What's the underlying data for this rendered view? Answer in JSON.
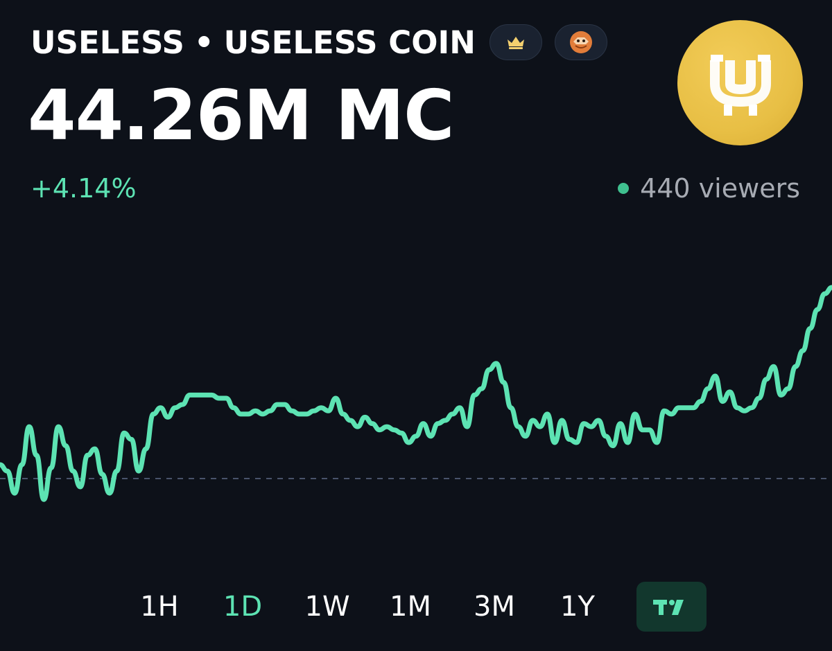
{
  "header": {
    "ticker": "USELESS",
    "separator": "•",
    "name": "USELESS COIN",
    "badges": [
      {
        "icon": "crown-icon",
        "color": "#f4d06f"
      },
      {
        "icon": "avatar-badge-icon",
        "color": "#e27d3a"
      }
    ]
  },
  "market_cap": "44.26M MC",
  "change": "+4.14%",
  "viewers": {
    "text": "440 viewers",
    "status_color": "#3fc08f"
  },
  "logo": {
    "icon": "useless-coin-logo",
    "color": "#e8bf45"
  },
  "chart_data": {
    "type": "line",
    "color": "#5de3b3",
    "reference_line": "dashed baseline",
    "values": [
      44,
      42,
      35,
      44,
      56,
      47,
      33,
      43,
      56,
      50,
      42,
      37,
      47,
      49,
      41,
      35,
      42,
      54,
      52,
      42,
      49,
      60,
      62,
      59,
      62,
      63,
      66,
      66,
      66,
      66,
      65,
      65,
      62,
      60,
      60,
      61,
      60,
      61,
      63,
      63,
      61,
      60,
      60,
      61,
      62,
      61,
      65,
      60,
      58,
      56,
      59,
      57,
      55,
      56,
      55,
      54,
      51,
      53,
      57,
      53,
      57,
      58,
      60,
      62,
      56,
      66,
      68,
      74,
      76,
      70,
      62,
      56,
      53,
      58,
      56,
      60,
      51,
      58,
      52,
      51,
      57,
      56,
      58,
      53,
      50,
      57,
      51,
      60,
      55,
      55,
      51,
      61,
      60,
      62,
      62,
      62,
      64,
      68,
      72,
      64,
      67,
      62,
      61,
      62,
      65,
      71,
      75,
      66,
      68,
      75,
      80,
      87,
      93,
      98,
      100
    ]
  },
  "timeframes": {
    "items": [
      "1H",
      "1D",
      "1W",
      "1M",
      "3M",
      "1Y"
    ],
    "active": "1D"
  },
  "chart_tool": {
    "icon": "tradingview-icon",
    "color": "#5de3b3"
  }
}
